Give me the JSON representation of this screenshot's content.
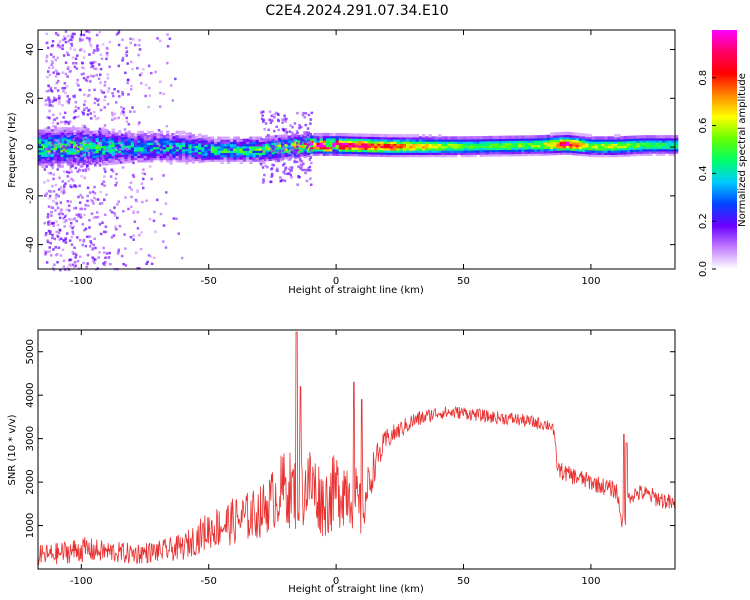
{
  "figure": {
    "title": "C2E4.2024.291.07.34.E10"
  },
  "chart_data": [
    {
      "type": "heatmap",
      "xlabel": "Height of straight line (km)",
      "ylabel": "Frequency (Hz)",
      "xlim": [
        -117,
        133
      ],
      "ylim": [
        -50,
        48
      ],
      "xticks": [
        -100,
        -50,
        0,
        50,
        100
      ],
      "xtick_labels": [
        "-100",
        "-50",
        "0",
        "50",
        "100"
      ],
      "yticks": [
        -40,
        -20,
        0,
        20,
        40
      ],
      "ytick_labels": [
        "-40",
        "-20",
        "0",
        "20",
        "40"
      ],
      "colorbar": {
        "label": "Normalized spectral amplitude",
        "range": [
          0,
          1
        ],
        "ticks": [
          0.0,
          0.2,
          0.4,
          0.6,
          0.8
        ],
        "tick_labels": [
          "0.0",
          "0.2",
          "0.4",
          "0.6",
          "0.8"
        ],
        "colors": [
          "#ffffff",
          "#c27cff",
          "#6a00ff",
          "#0044ff",
          "#00ccff",
          "#00ff66",
          "#66ff00",
          "#ffff00",
          "#ff8800",
          "#ff0000",
          "#ff0066",
          "#ff00ff"
        ]
      },
      "profile": {
        "height_km": [
          -115,
          -100,
          -80,
          -60,
          -50,
          -40,
          -30,
          -20,
          -10,
          0,
          20,
          50,
          80,
          90,
          100,
          110,
          120,
          133
        ],
        "center_hz": [
          0,
          0,
          0,
          0,
          -1,
          -1,
          -1,
          0,
          1,
          1,
          0.5,
          0.5,
          1,
          1.5,
          0.5,
          0.5,
          1,
          1
        ],
        "peak_amplitude": [
          0.45,
          0.45,
          0.35,
          0.35,
          0.4,
          0.4,
          0.45,
          0.5,
          0.9,
          0.95,
          0.8,
          0.5,
          0.55,
          0.9,
          0.55,
          0.6,
          0.5,
          0.45
        ],
        "band_halfwidth_hz": [
          6,
          6,
          5,
          5,
          4,
          4,
          4,
          4,
          3,
          3,
          3,
          3,
          3,
          3,
          3,
          3,
          3,
          3
        ]
      },
      "scatter_extent_km": [
        -115,
        -60
      ]
    },
    {
      "type": "line",
      "xlabel": "Height of straight line (km)",
      "ylabel": "SNR (10 * v/v)",
      "xlim": [
        -117,
        133
      ],
      "ylim": [
        0,
        5500
      ],
      "xticks": [
        -100,
        -50,
        0,
        50,
        100
      ],
      "xtick_labels": [
        "-100",
        "-50",
        "0",
        "50",
        "100"
      ],
      "yticks": [
        1000,
        2000,
        3000,
        4000,
        5000
      ],
      "ytick_labels": [
        "1000",
        "2000",
        "3000",
        "4000",
        "5000"
      ],
      "color": "#e83030",
      "series": [
        {
          "x": [
            -117,
            -110,
            -100,
            -90,
            -80,
            -70,
            -60,
            -50,
            -40,
            -30,
            -25,
            -20,
            -15,
            -10,
            -5,
            0,
            5,
            10,
            15,
            20,
            25,
            30,
            40,
            50,
            60,
            70,
            80,
            85,
            87,
            90,
            95,
            100,
            105,
            110,
            113,
            115,
            120,
            125,
            130,
            133
          ],
          "y": [
            300,
            350,
            450,
            400,
            350,
            400,
            500,
            900,
            1100,
            1300,
            1600,
            1900,
            1700,
            2000,
            1500,
            1800,
            1900,
            1300,
            2400,
            3000,
            3200,
            3400,
            3600,
            3600,
            3500,
            3450,
            3350,
            3300,
            2300,
            2200,
            2100,
            2000,
            1900,
            1800,
            900,
            1700,
            1750,
            1650,
            1550,
            1450
          ],
          "noise": [
            250,
            250,
            300,
            250,
            250,
            250,
            300,
            450,
            550,
            600,
            700,
            900,
            900,
            900,
            800,
            900,
            900,
            700,
            400,
            250,
            200,
            200,
            150,
            150,
            150,
            150,
            150,
            150,
            200,
            200,
            200,
            200,
            200,
            200,
            250,
            200,
            200,
            200,
            200,
            200
          ],
          "spikes": [
            {
              "x": -15.5,
              "y": 5450,
              "base": 1500
            },
            {
              "x": -14,
              "y": 4200,
              "base": 1600
            },
            {
              "x": 7,
              "y": 4300,
              "base": 2200
            },
            {
              "x": 10,
              "y": 3900,
              "base": 2000
            },
            {
              "x": 113,
              "y": 3100,
              "base": 1800
            },
            {
              "x": 114,
              "y": 2900,
              "base": 1800
            }
          ]
        }
      ]
    }
  ]
}
